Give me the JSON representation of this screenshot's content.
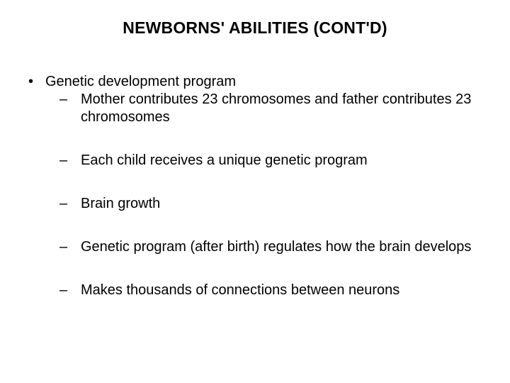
{
  "title": "NEWBORNS' ABILITIES (CONT'D)",
  "bullet": "•",
  "dash": "–",
  "level1_text": "Genetic development program",
  "sub1": "Mother contributes 23 chromosomes and father contributes 23 chromosomes",
  "sub2": "Each child receives a unique genetic program",
  "sub3": "Brain growth",
  "sub4": "Genetic program (after birth) regulates how the brain develops",
  "sub5": "Makes thousands of connections between neurons"
}
